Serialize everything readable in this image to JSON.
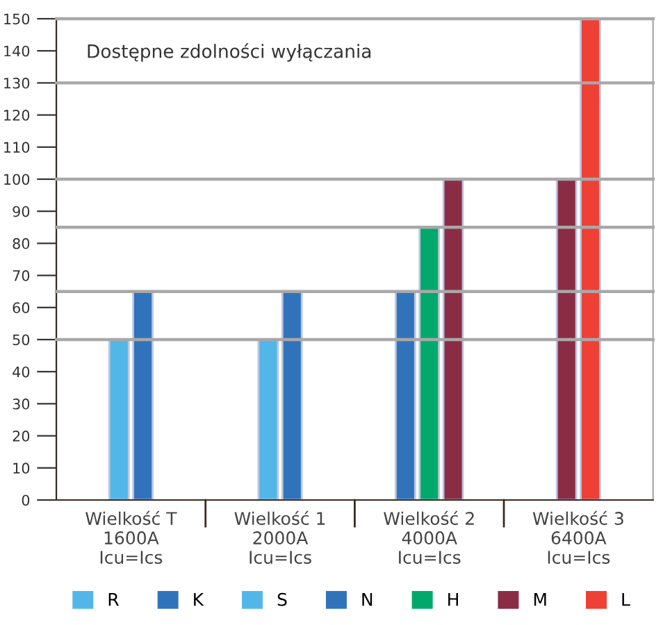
{
  "chart_data": {
    "type": "bar",
    "title": "Dostępne zdolności wyłączania",
    "categories": [
      "Wielkość T\n1600A\nIcu=Ics",
      "Wielkość 1\n2000A\nIcu=Ics",
      "Wielkość 2\n4000A\nIcu=Ics",
      "Wielkość 3\n6400A\nIcu=Ics"
    ],
    "series": [
      {
        "name": "R",
        "color": "#52b7e8",
        "values": [
          50,
          null,
          null,
          null
        ]
      },
      {
        "name": "K",
        "color": "#3173bb",
        "values": [
          65,
          null,
          null,
          null
        ]
      },
      {
        "name": "S",
        "color": "#52b7e8",
        "values": [
          null,
          50,
          null,
          null
        ]
      },
      {
        "name": "N",
        "color": "#3173bb",
        "values": [
          null,
          65,
          65,
          null
        ]
      },
      {
        "name": "H",
        "color": "#00a96b",
        "values": [
          null,
          null,
          85,
          null
        ]
      },
      {
        "name": "M",
        "color": "#8b2c45",
        "values": [
          null,
          null,
          100,
          100
        ]
      },
      {
        "name": "L",
        "color": "#ee4035",
        "values": [
          null,
          null,
          null,
          150
        ]
      }
    ],
    "ylim": [
      0,
      150
    ],
    "yticks": [
      0,
      10,
      20,
      30,
      40,
      50,
      60,
      70,
      80,
      90,
      100,
      110,
      120,
      130,
      140,
      150
    ],
    "ref_lines": [
      {
        "axis": "y",
        "value": 50,
        "color": "#a8a8a8"
      },
      {
        "axis": "y",
        "value": 65,
        "color": "#a8a8a8"
      },
      {
        "axis": "y",
        "value": 85,
        "color": "#a8a8a8"
      },
      {
        "axis": "y",
        "value": 100,
        "color": "#a8a8a8"
      },
      {
        "axis": "y",
        "value": 130,
        "color": "#a8a8a8"
      }
    ],
    "grid": false,
    "legend": "bottom"
  }
}
